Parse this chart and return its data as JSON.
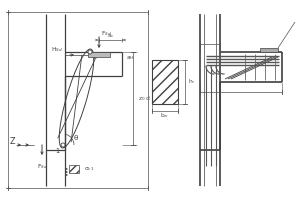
{
  "lc": "#404040",
  "dc": "#505050",
  "figsize": [
    3.0,
    2.0
  ],
  "dpi": 100,
  "fs": 4.8
}
